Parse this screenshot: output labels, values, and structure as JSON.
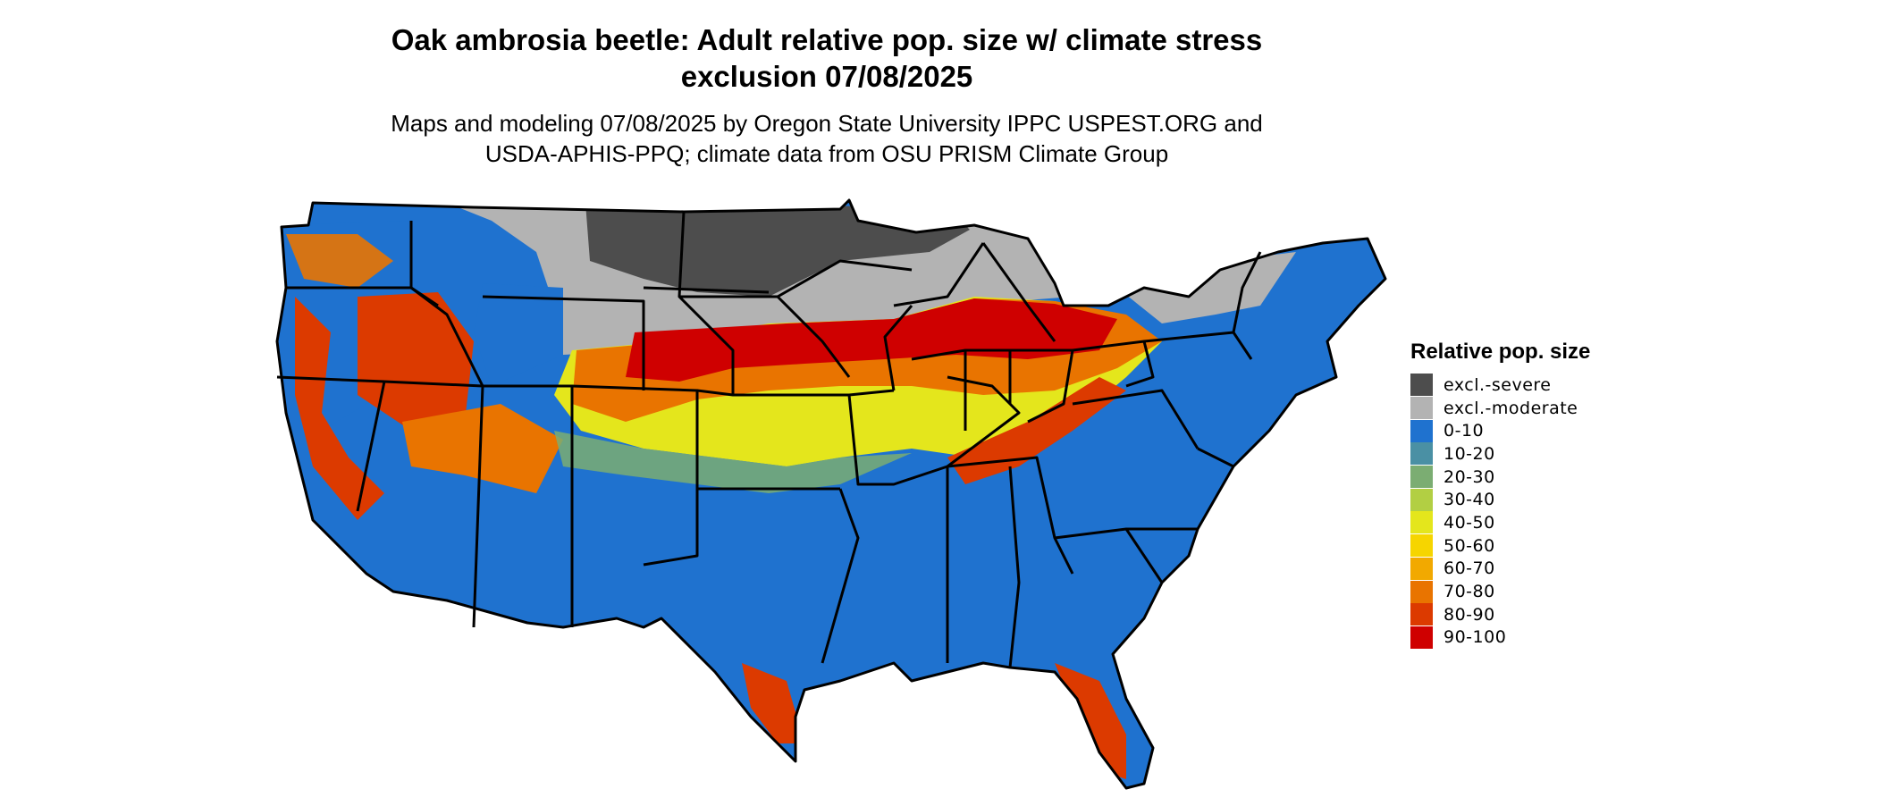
{
  "title": {
    "line1": "Oak ambrosia beetle: Adult relative pop. size w/ climate stress",
    "line2": "exclusion 07/08/2025"
  },
  "subtitle": {
    "line1": "Maps and modeling 07/08/2025 by Oregon State University IPPC USPEST.ORG and",
    "line2": "USDA-APHIS-PPQ; climate data from OSU PRISM Climate Group"
  },
  "legend": {
    "title": "Relative pop. size",
    "items": [
      {
        "label": "excl.-severe",
        "color": "#4d4d4d"
      },
      {
        "label": "excl.-moderate",
        "color": "#b3b3b3"
      },
      {
        "label": "0-10",
        "color": "#1f72cf"
      },
      {
        "label": "10-20",
        "color": "#4a90a4"
      },
      {
        "label": "20-30",
        "color": "#7bad72"
      },
      {
        "label": "30-40",
        "color": "#b2cf43"
      },
      {
        "label": "40-50",
        "color": "#e4e61c"
      },
      {
        "label": "50-60",
        "color": "#f6d500"
      },
      {
        "label": "60-70",
        "color": "#f2a900"
      },
      {
        "label": "70-80",
        "color": "#e97400"
      },
      {
        "label": "80-90",
        "color": "#dc3a00"
      },
      {
        "label": "90-100",
        "color": "#cf0000"
      }
    ]
  }
}
